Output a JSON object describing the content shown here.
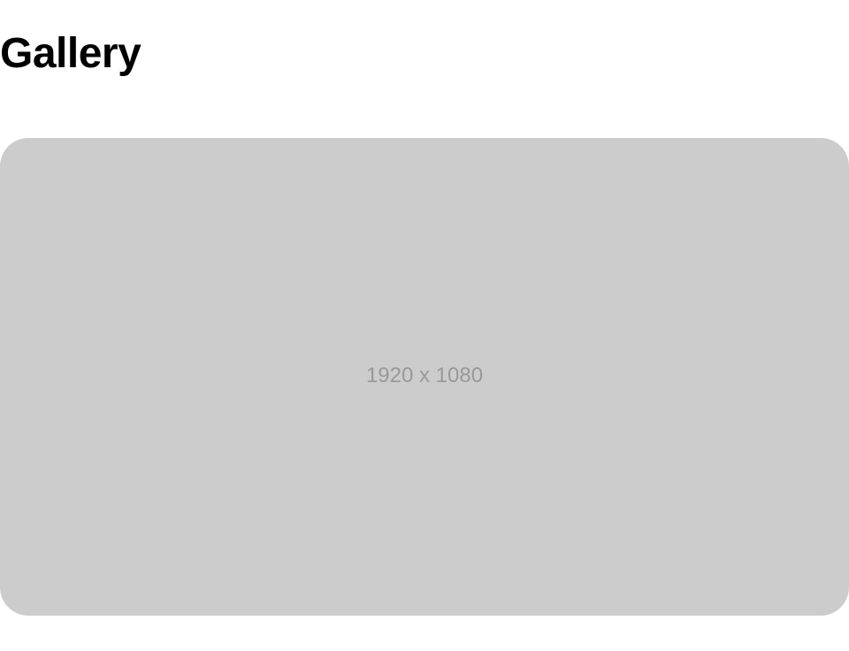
{
  "header": {
    "title": "Gallery"
  },
  "gallery": {
    "images": [
      {
        "label": "1920 x 1080",
        "background_color": "#cccccc",
        "label_color": "#999999"
      }
    ]
  }
}
